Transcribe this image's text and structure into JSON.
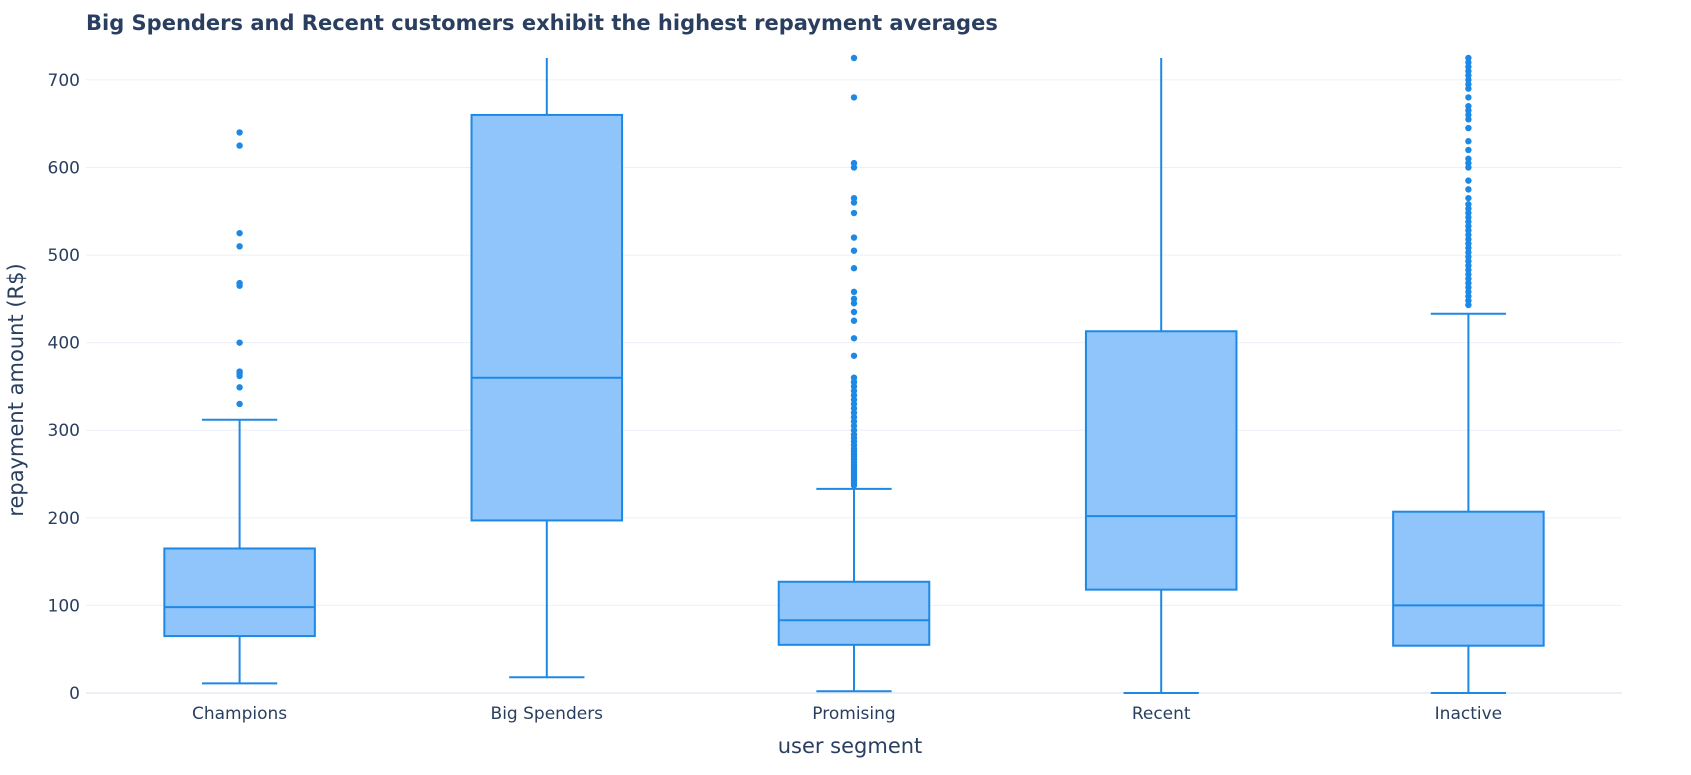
{
  "chart_data": {
    "type": "box",
    "title": "Big Spenders and Recent customers exhibit the highest repayment averages",
    "xlabel": "user segment",
    "ylabel": "repayment amount (R$)",
    "ylim": [
      0,
      725
    ],
    "yticks": [
      0,
      100,
      200,
      300,
      400,
      500,
      600,
      700
    ],
    "ytick_labels": [
      "0",
      "100",
      "200",
      "300",
      "400",
      "500",
      "600",
      "700"
    ],
    "grid": true,
    "colors": {
      "line": "#1e88e5",
      "fill": "#90c5fc",
      "grid": "#ebf0f8",
      "text": "#2a3f5f"
    },
    "categories": [
      "Champions",
      "Big Spenders",
      "Promising",
      "Recent",
      "Inactive"
    ],
    "boxes": [
      {
        "category": "Champions",
        "min": 11,
        "q1": 65,
        "median": 98,
        "q3": 165,
        "max": 312,
        "outliers": [
          330,
          349,
          362,
          365,
          367,
          400,
          465,
          468,
          510,
          525,
          625,
          640
        ]
      },
      {
        "category": "Big Spenders",
        "min": 18,
        "q1": 197,
        "median": 360,
        "q3": 660,
        "max": 725,
        "outliers": []
      },
      {
        "category": "Promising",
        "min": 2,
        "q1": 55,
        "median": 83,
        "q3": 127,
        "max": 233,
        "outliers": [
          237,
          240,
          243,
          246,
          249,
          252,
          255,
          258,
          261,
          264,
          267,
          270,
          273,
          276,
          279,
          283,
          287,
          291,
          295,
          300,
          305,
          310,
          315,
          320,
          325,
          330,
          335,
          340,
          345,
          350,
          355,
          360,
          385,
          405,
          425,
          435,
          445,
          450,
          458,
          485,
          505,
          520,
          548,
          560,
          565,
          600,
          605,
          680,
          725
        ]
      },
      {
        "category": "Recent",
        "min": 0,
        "q1": 118,
        "median": 202,
        "q3": 413,
        "max": 725,
        "outliers": []
      },
      {
        "category": "Inactive",
        "min": 0,
        "q1": 54,
        "median": 100,
        "q3": 207,
        "max": 433,
        "outliers": [
          443,
          448,
          453,
          458,
          463,
          468,
          473,
          478,
          483,
          488,
          493,
          498,
          503,
          508,
          513,
          518,
          523,
          528,
          533,
          538,
          543,
          548,
          553,
          558,
          565,
          575,
          585,
          600,
          605,
          610,
          620,
          630,
          645,
          655,
          660,
          665,
          670,
          680,
          690,
          695,
          700,
          705,
          710,
          715,
          720,
          725
        ]
      }
    ]
  }
}
